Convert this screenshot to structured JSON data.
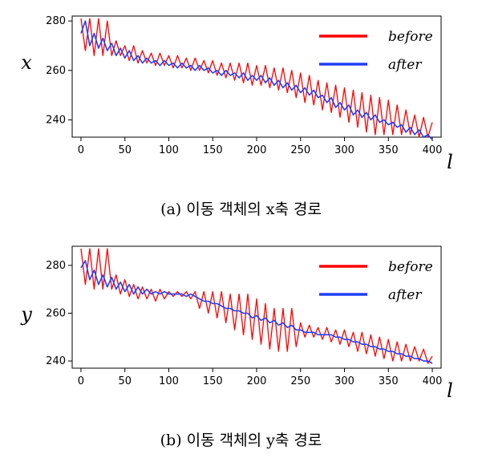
{
  "colors": {
    "before": "#ff0000",
    "after": "#1f3fff"
  },
  "chart_data": [
    {
      "type": "line",
      "ylabel": "x",
      "xlabel": "l",
      "caption": "(a) 이동 객체의 x축 경로",
      "xlim": [
        -10,
        410
      ],
      "ylim": [
        233,
        282
      ],
      "xticks": [
        "0",
        "50",
        "100",
        "150",
        "200",
        "250",
        "300",
        "350",
        "400"
      ],
      "yticks": [
        "240",
        "260",
        "280"
      ],
      "grid": false,
      "legend_position": "top-right",
      "series": [
        {
          "name": "before",
          "color": "#ff0000",
          "x": [
            0,
            5,
            10,
            15,
            20,
            25,
            30,
            35,
            40,
            45,
            50,
            55,
            60,
            65,
            70,
            75,
            80,
            85,
            90,
            95,
            100,
            105,
            110,
            115,
            120,
            125,
            130,
            135,
            140,
            145,
            150,
            155,
            160,
            165,
            170,
            175,
            180,
            185,
            190,
            195,
            200,
            205,
            210,
            215,
            220,
            225,
            230,
            235,
            240,
            245,
            250,
            255,
            260,
            265,
            270,
            275,
            280,
            285,
            290,
            295,
            300,
            305,
            310,
            315,
            320,
            325,
            330,
            335,
            340,
            345,
            350,
            355,
            360,
            365,
            370,
            375,
            380,
            385,
            390,
            395,
            400
          ],
          "values": [
            281,
            268,
            281,
            266,
            281,
            266,
            280,
            266,
            272,
            266,
            270,
            264,
            270,
            263,
            268,
            263,
            267,
            262,
            267,
            262,
            266,
            261,
            266,
            261,
            265,
            260,
            265,
            260,
            264,
            259,
            264,
            258,
            263,
            257,
            263,
            256,
            263,
            255,
            263,
            254,
            262,
            254,
            262,
            253,
            261,
            252,
            261,
            251,
            260,
            249,
            259,
            247,
            258,
            246,
            256,
            244,
            255,
            243,
            254,
            241,
            253,
            239,
            252,
            237,
            251,
            235,
            250,
            234,
            249,
            234,
            248,
            234,
            246,
            234,
            244,
            234,
            242,
            233,
            241,
            233,
            239
          ]
        },
        {
          "name": "after",
          "color": "#1f3fff",
          "x": [
            0,
            5,
            10,
            15,
            20,
            25,
            30,
            35,
            40,
            45,
            50,
            55,
            60,
            65,
            70,
            75,
            80,
            85,
            90,
            95,
            100,
            105,
            110,
            115,
            120,
            125,
            130,
            135,
            140,
            145,
            150,
            155,
            160,
            165,
            170,
            175,
            180,
            185,
            190,
            195,
            200,
            205,
            210,
            215,
            220,
            225,
            230,
            235,
            240,
            245,
            250,
            255,
            260,
            265,
            270,
            275,
            280,
            285,
            290,
            295,
            300,
            305,
            310,
            315,
            320,
            325,
            330,
            335,
            340,
            345,
            350,
            355,
            360,
            365,
            370,
            375,
            380,
            385,
            390,
            395,
            400
          ],
          "values": [
            275,
            280,
            270,
            275,
            269,
            273,
            268,
            271,
            266,
            269,
            265,
            268,
            264,
            266,
            263,
            265,
            263,
            264,
            262,
            264,
            262,
            263,
            261,
            263,
            261,
            262,
            260,
            262,
            260,
            261,
            259,
            260,
            258,
            260,
            258,
            259,
            257,
            259,
            256,
            258,
            256,
            258,
            255,
            257,
            254,
            256,
            253,
            255,
            252,
            254,
            251,
            253,
            250,
            252,
            249,
            250,
            247,
            249,
            245,
            247,
            244,
            246,
            242,
            244,
            241,
            243,
            240,
            242,
            239,
            240,
            238,
            239,
            237,
            238,
            235,
            237,
            234,
            236,
            233,
            234,
            232
          ]
        }
      ]
    },
    {
      "type": "line",
      "ylabel": "y",
      "xlabel": "l",
      "caption": "(b) 이동 객체의 y축 경로",
      "xlim": [
        -10,
        410
      ],
      "ylim": [
        237,
        288
      ],
      "xticks": [
        "0",
        "50",
        "100",
        "150",
        "200",
        "250",
        "300",
        "350",
        "400"
      ],
      "yticks": [
        "240",
        "260",
        "280"
      ],
      "grid": false,
      "legend_position": "top-right",
      "series": [
        {
          "name": "before",
          "color": "#ff0000",
          "x": [
            0,
            5,
            10,
            15,
            20,
            25,
            30,
            35,
            40,
            45,
            50,
            55,
            60,
            65,
            70,
            75,
            80,
            85,
            90,
            95,
            100,
            105,
            110,
            115,
            120,
            125,
            130,
            135,
            140,
            145,
            150,
            155,
            160,
            165,
            170,
            175,
            180,
            185,
            190,
            195,
            200,
            205,
            210,
            215,
            220,
            225,
            230,
            235,
            240,
            245,
            250,
            255,
            260,
            265,
            270,
            275,
            280,
            285,
            290,
            295,
            300,
            305,
            310,
            315,
            320,
            325,
            330,
            335,
            340,
            345,
            350,
            355,
            360,
            365,
            370,
            375,
            380,
            385,
            390,
            395,
            400
          ],
          "values": [
            287,
            272,
            287,
            270,
            287,
            270,
            287,
            270,
            276,
            268,
            274,
            267,
            272,
            266,
            271,
            266,
            270,
            265,
            270,
            266,
            269,
            267,
            269,
            267,
            269,
            266,
            269,
            262,
            269,
            260,
            269,
            258,
            269,
            256,
            268,
            253,
            268,
            251,
            268,
            249,
            266,
            247,
            264,
            245,
            262,
            244,
            262,
            244,
            262,
            246,
            256,
            250,
            255,
            250,
            254,
            249,
            254,
            248,
            253,
            247,
            253,
            246,
            252,
            244,
            252,
            243,
            251,
            242,
            250,
            241,
            249,
            240,
            248,
            240,
            247,
            240,
            246,
            240,
            245,
            239,
            242
          ]
        },
        {
          "name": "after",
          "color": "#1f3fff",
          "x": [
            0,
            5,
            10,
            15,
            20,
            25,
            30,
            35,
            40,
            45,
            50,
            55,
            60,
            65,
            70,
            75,
            80,
            85,
            90,
            95,
            100,
            105,
            110,
            115,
            120,
            125,
            130,
            135,
            140,
            145,
            150,
            155,
            160,
            165,
            170,
            175,
            180,
            185,
            190,
            195,
            200,
            205,
            210,
            215,
            220,
            225,
            230,
            235,
            240,
            245,
            250,
            255,
            260,
            265,
            270,
            275,
            280,
            285,
            290,
            295,
            300,
            305,
            310,
            315,
            320,
            325,
            330,
            335,
            340,
            345,
            350,
            355,
            360,
            365,
            370,
            375,
            380,
            385,
            390,
            395,
            400
          ],
          "values": [
            279,
            282,
            274,
            278,
            272,
            276,
            271,
            275,
            270,
            273,
            269,
            272,
            268,
            271,
            268,
            270,
            268,
            269,
            268,
            269,
            268,
            268,
            268,
            268,
            267,
            268,
            267,
            266,
            265,
            265,
            264,
            264,
            263,
            262,
            262,
            261,
            261,
            260,
            260,
            258,
            259,
            257,
            258,
            256,
            257,
            255,
            256,
            254,
            255,
            253,
            253,
            252,
            252,
            252,
            251,
            251,
            251,
            251,
            250,
            250,
            249,
            249,
            248,
            248,
            247,
            247,
            246,
            246,
            245,
            245,
            244,
            244,
            243,
            243,
            242,
            242,
            241,
            241,
            240,
            240,
            239
          ]
        }
      ]
    }
  ]
}
